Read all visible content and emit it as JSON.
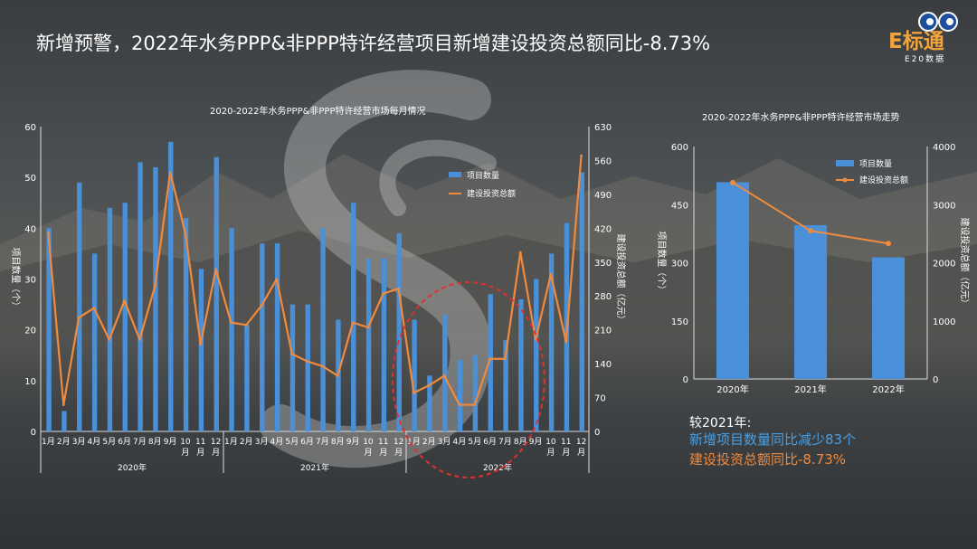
{
  "slide_title": "新增预警，2022年水务PPP&非PPP特许经营项目新增建设投资总额同比-8.73%",
  "brand": {
    "logo_text": "E标通",
    "sub_text": "E20数据"
  },
  "colors": {
    "bar": "#4a90d9",
    "line": "#f08a3c",
    "axis": "#dddddd",
    "annotation": "#e03030"
  },
  "chart_data": [
    {
      "type": "bar+line",
      "title": "2020-2022年水务PPP&非PPP特许经营市场每月情况",
      "categories": [
        "1月",
        "2月",
        "3月",
        "4月",
        "5月",
        "6月",
        "7月",
        "8月",
        "9月",
        "10月",
        "11月",
        "12月",
        "1月",
        "2月",
        "3月",
        "4月",
        "5月",
        "6月",
        "7月",
        "8月",
        "9月",
        "10月",
        "11月",
        "12月",
        "1月",
        "2月",
        "3月",
        "4月",
        "5月",
        "6月",
        "7月",
        "8月",
        "9月",
        "10月",
        "11月",
        "12月"
      ],
      "category_labels": [
        "1月",
        "2月",
        "3月",
        "4月",
        "5月",
        "6月",
        "7月",
        "8月",
        "9月",
        "10\n月",
        "11\n月",
        "12\n月",
        "1月",
        "2月",
        "3月",
        "4月",
        "5月",
        "6月",
        "7月",
        "8月",
        "9月",
        "10\n月",
        "11\n月",
        "12\n月",
        "1月",
        "2月",
        "3月",
        "4月",
        "5月",
        "6月",
        "7月",
        "8月",
        "9月",
        "10\n月",
        "11\n月",
        "12\n月"
      ],
      "year_groups": [
        "2020年",
        "2021年",
        "2022年"
      ],
      "series": [
        {
          "name": "项目数量",
          "kind": "bar",
          "axis": "left",
          "values": [
            40,
            4,
            49,
            35,
            44,
            45,
            53,
            52,
            57,
            42,
            32,
            54,
            40,
            21,
            37,
            37,
            25,
            25,
            40,
            22,
            45,
            34,
            34,
            39,
            22,
            11,
            23,
            14,
            15,
            27,
            18,
            26,
            30,
            35,
            41,
            51
          ]
        },
        {
          "name": "建设投资总额",
          "kind": "line",
          "axis": "right",
          "values": [
            410,
            55,
            235,
            255,
            190,
            270,
            190,
            300,
            535,
            410,
            180,
            335,
            225,
            220,
            260,
            315,
            160,
            145,
            135,
            115,
            225,
            215,
            285,
            295,
            80,
            95,
            115,
            55,
            55,
            150,
            150,
            370,
            190,
            325,
            185,
            570
          ]
        }
      ],
      "ylabel_left": "项目数量（个）",
      "ylabel_right": "建设投资总额（亿元）",
      "ylim_left": [
        0,
        60
      ],
      "ylim_right": [
        0,
        630
      ],
      "yticks_left": [
        0,
        10,
        20,
        30,
        40,
        50,
        60
      ],
      "yticks_right": [
        0,
        70,
        140,
        210,
        280,
        350,
        420,
        490,
        560,
        630
      ],
      "legend": "top-right",
      "annotation": "dashed ellipse around 2022 Jan–Jul"
    },
    {
      "type": "bar+line",
      "title": "2020-2022年水务PPP&非PPP特许经营市场走势",
      "categories": [
        "2020年",
        "2021年",
        "2022年"
      ],
      "series": [
        {
          "name": "项目数量",
          "kind": "bar",
          "axis": "left",
          "values": [
            508,
            397,
            314
          ]
        },
        {
          "name": "建设投资总额",
          "kind": "line",
          "axis": "right",
          "values": [
            3380,
            2550,
            2330
          ]
        }
      ],
      "ylabel_left": "项目数量（个）",
      "ylabel_right": "建设投资总额（亿元）",
      "ylim_left": [
        0,
        600
      ],
      "ylim_right": [
        0,
        4000
      ],
      "yticks_left": [
        0,
        150,
        300,
        450,
        600
      ],
      "yticks_right": [
        0,
        1000,
        2000,
        3000,
        4000
      ],
      "legend": "top-right"
    }
  ],
  "notes": {
    "heading": "较2021年:",
    "line1": "新增项目数量同比减少83个",
    "line2": "建设投资总额同比-8.73%"
  }
}
